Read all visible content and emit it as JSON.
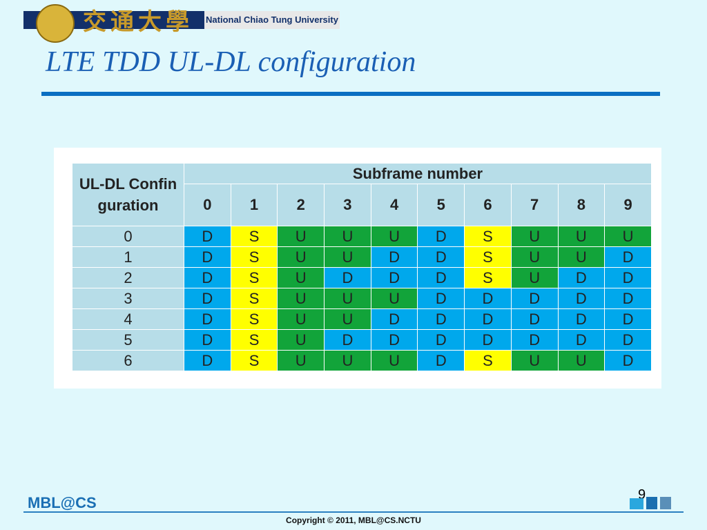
{
  "header": {
    "chinese_name": "交通大學",
    "english_name": "National Chiao Tung University"
  },
  "title": "LTE TDD UL-DL configuration",
  "table": {
    "corner": "UL-DL Confinguration",
    "group_header": "Subframe number",
    "columns": [
      "0",
      "1",
      "2",
      "3",
      "4",
      "5",
      "6",
      "7",
      "8",
      "9"
    ],
    "rows": [
      [
        "0",
        "D",
        "S",
        "U",
        "U",
        "U",
        "D",
        "S",
        "U",
        "U",
        "U"
      ],
      [
        "1",
        "D",
        "S",
        "U",
        "U",
        "D",
        "D",
        "S",
        "U",
        "U",
        "D"
      ],
      [
        "2",
        "D",
        "S",
        "U",
        "D",
        "D",
        "D",
        "S",
        "U",
        "D",
        "D"
      ],
      [
        "3",
        "D",
        "S",
        "U",
        "U",
        "U",
        "D",
        "D",
        "D",
        "D",
        "D"
      ],
      [
        "4",
        "D",
        "S",
        "U",
        "U",
        "D",
        "D",
        "D",
        "D",
        "D",
        "D"
      ],
      [
        "5",
        "D",
        "S",
        "U",
        "D",
        "D",
        "D",
        "D",
        "D",
        "D",
        "D"
      ],
      [
        "6",
        "D",
        "S",
        "U",
        "U",
        "U",
        "D",
        "S",
        "U",
        "U",
        "D"
      ]
    ]
  },
  "footer": {
    "page_number": "9",
    "brand": "MBL@CS",
    "copyright": "Copyright © 2011, MBL@CS.NCTU"
  }
}
